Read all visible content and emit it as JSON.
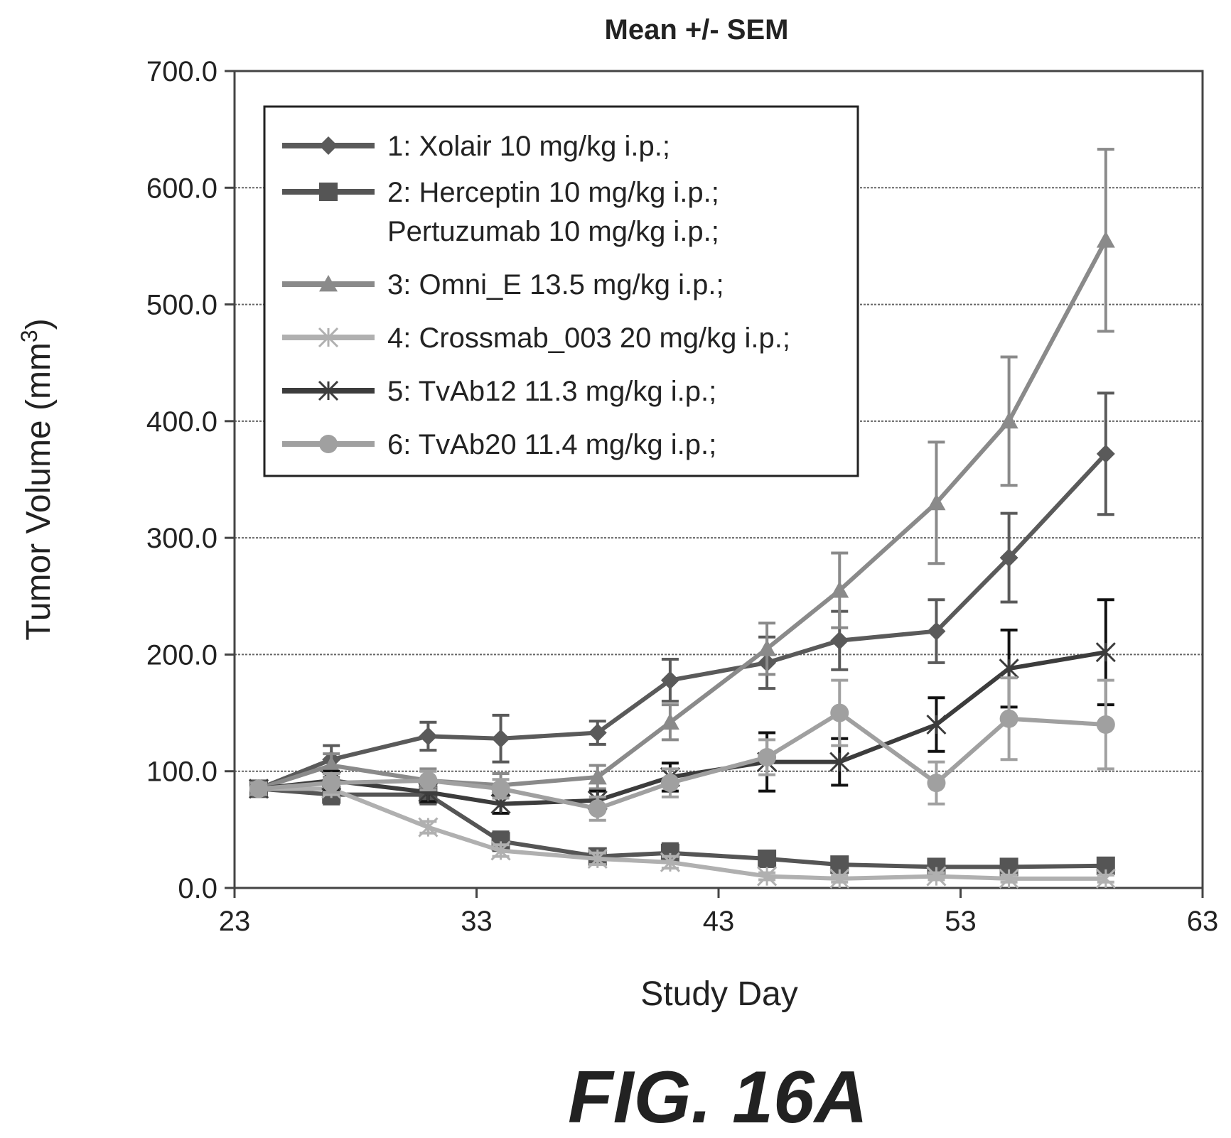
{
  "figure_label": "FIG. 16A",
  "colors": {
    "axis": "#444444",
    "grid": "#666666",
    "error_bar_black": "#111111"
  },
  "chart_data": {
    "type": "line",
    "title": "Mean +/- SEM",
    "xlabel": "Study Day",
    "ylabel": "Tumor Volume (mm",
    "ylabel_superscript": "3",
    "ylabel_close": ")",
    "xlim": [
      23,
      63
    ],
    "ylim": [
      0,
      700
    ],
    "xticks": [
      23,
      33,
      43,
      53,
      63
    ],
    "xtick_labels": [
      "23",
      "33",
      "43",
      "53",
      "63"
    ],
    "yticks": [
      0,
      100,
      200,
      300,
      400,
      500,
      600,
      700
    ],
    "ytick_labels": [
      "0.0",
      "100.0",
      "200.0",
      "300.0",
      "400.0",
      "500.0",
      "600.0",
      "700.0"
    ],
    "grid": true,
    "legend_position": "top-left",
    "x": [
      24,
      27,
      31,
      34,
      38,
      41,
      45,
      48,
      52,
      55,
      59
    ],
    "series": [
      {
        "name": "1: Xolair 10 mg/kg i.p.;",
        "color": "#5a5a5a",
        "marker": "diamond",
        "values": [
          85,
          110,
          130,
          128,
          133,
          178,
          193,
          212,
          220,
          283,
          372
        ],
        "sem": [
          5,
          12,
          12,
          20,
          10,
          18,
          22,
          25,
          27,
          38,
          52
        ]
      },
      {
        "name": "2: Herceptin 10 mg/kg i.p.; Pertuzumab 10 mg/kg i.p.;",
        "color": "#555555",
        "marker": "square",
        "values": [
          85,
          80,
          80,
          40,
          27,
          30,
          25,
          20,
          18,
          18,
          19
        ],
        "sem": [
          5,
          8,
          8,
          8,
          6,
          8,
          6,
          5,
          4,
          4,
          4
        ]
      },
      {
        "name": "3: Omni_E 13.5 mg/kg i.p.;",
        "color": "#8a8a8a",
        "marker": "triangle",
        "values": [
          85,
          105,
          92,
          88,
          95,
          142,
          205,
          255,
          330,
          400,
          555
        ],
        "sem": [
          5,
          10,
          10,
          10,
          10,
          15,
          22,
          32,
          52,
          55,
          78
        ]
      },
      {
        "name": "4: Crossmab_003 20 mg/kg i.p.;",
        "color": "#b0b0b0",
        "marker": "x",
        "values": [
          85,
          85,
          52,
          32,
          25,
          22,
          10,
          8,
          10,
          8,
          8
        ],
        "sem": [
          5,
          5,
          5,
          5,
          5,
          5,
          3,
          3,
          3,
          3,
          3
        ]
      },
      {
        "name": "5: TvAb12 11.3 mg/kg i.p.;",
        "color": "#3c3c3c",
        "marker": "star",
        "values": [
          85,
          92,
          82,
          72,
          75,
          95,
          108,
          108,
          140,
          188,
          202
        ],
        "sem": [
          5,
          8,
          8,
          8,
          8,
          12,
          25,
          20,
          23,
          33,
          45
        ]
      },
      {
        "name": "6: TvAb20 11.4 mg/kg i.p.;",
        "color": "#a0a0a0",
        "marker": "circle",
        "values": [
          85,
          90,
          92,
          85,
          68,
          90,
          112,
          150,
          90,
          145,
          140
        ],
        "sem": [
          5,
          8,
          8,
          8,
          10,
          12,
          15,
          28,
          18,
          35,
          38
        ]
      }
    ],
    "legend": [
      {
        "lines": [
          "1: Xolair 10 mg/kg i.p.;"
        ]
      },
      {
        "lines": [
          "2: Herceptin 10 mg/kg i.p.;",
          "Pertuzumab 10 mg/kg i.p.;"
        ]
      },
      {
        "lines": [
          "3: Omni_E 13.5 mg/kg i.p.;"
        ]
      },
      {
        "lines": [
          "4: Crossmab_003 20 mg/kg i.p.;"
        ]
      },
      {
        "lines": [
          "5: TvAb12 11.3 mg/kg i.p.;"
        ]
      },
      {
        "lines": [
          "6: TvAb20 11.4 mg/kg i.p.;"
        ]
      }
    ]
  }
}
